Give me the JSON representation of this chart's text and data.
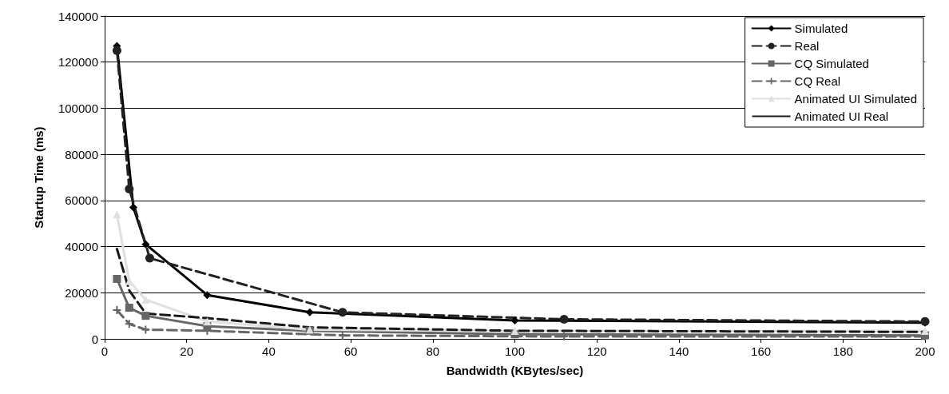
{
  "chart_data": {
    "type": "line",
    "xlabel": "Bandwidth (KBytes/sec)",
    "ylabel": "Startup Time (ms)",
    "xlim": [
      0,
      200
    ],
    "xticks": [
      0,
      20,
      40,
      60,
      80,
      100,
      120,
      140,
      160,
      180,
      200
    ],
    "ylim": [
      0,
      140000
    ],
    "yticks": [
      0,
      20000,
      40000,
      60000,
      80000,
      100000,
      120000,
      140000
    ],
    "grid": "y",
    "legend": "top right",
    "series": [
      {
        "name": "Simulated",
        "color": "#000000",
        "marker": "diamond",
        "line_style": "solid",
        "x": [
          3,
          7,
          10,
          25,
          50,
          100,
          200
        ],
        "values": [
          127000,
          57000,
          41000,
          19000,
          11500,
          8000,
          7000
        ]
      },
      {
        "name": "Real",
        "color": "#222222",
        "marker": "circle",
        "line_style": "dashed",
        "x": [
          3,
          6,
          11,
          58,
          112,
          200
        ],
        "values": [
          125000,
          65000,
          35000,
          11500,
          8500,
          7500
        ]
      },
      {
        "name": "CQ Simulated",
        "color": "#666666",
        "marker": "square",
        "line_style": "solid",
        "x": [
          3,
          6,
          10,
          25,
          50,
          100,
          200
        ],
        "values": [
          26000,
          13500,
          10000,
          5500,
          3500,
          2000,
          1500
        ]
      },
      {
        "name": "CQ Real",
        "color": "#666666",
        "marker": "cross",
        "line_style": "dashed",
        "x": [
          3,
          6,
          10,
          25,
          58,
          112,
          200
        ],
        "values": [
          12500,
          6500,
          4000,
          3500,
          1500,
          1000,
          1000
        ]
      },
      {
        "name": "Animated UI Simulated",
        "color": "#e0e0e0",
        "marker": "triangle",
        "line_style": "solid",
        "x": [
          3,
          6,
          10,
          25,
          50,
          100,
          200
        ],
        "values": [
          54000,
          25000,
          17000,
          7500,
          4000,
          3500,
          3500
        ]
      },
      {
        "name": "Animated UI Real",
        "color": "#1a1a1a",
        "marker": "none",
        "line_style": "dashed",
        "x": [
          3,
          6,
          10,
          25,
          50,
          100,
          200
        ],
        "values": [
          39000,
          21000,
          11000,
          9000,
          5000,
          3500,
          3000
        ]
      }
    ]
  }
}
